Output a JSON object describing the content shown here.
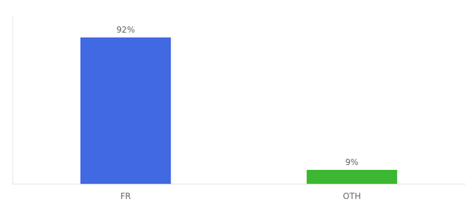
{
  "chart_data": {
    "type": "bar",
    "categories": [
      "FR",
      "OTH"
    ],
    "values": [
      92,
      9
    ],
    "value_labels": [
      "92%",
      "9%"
    ],
    "colors": [
      "#4169E1",
      "#3CB731"
    ],
    "ylim": [
      0,
      105
    ],
    "grid": false,
    "data_labels": true,
    "tick_labels": "x"
  }
}
